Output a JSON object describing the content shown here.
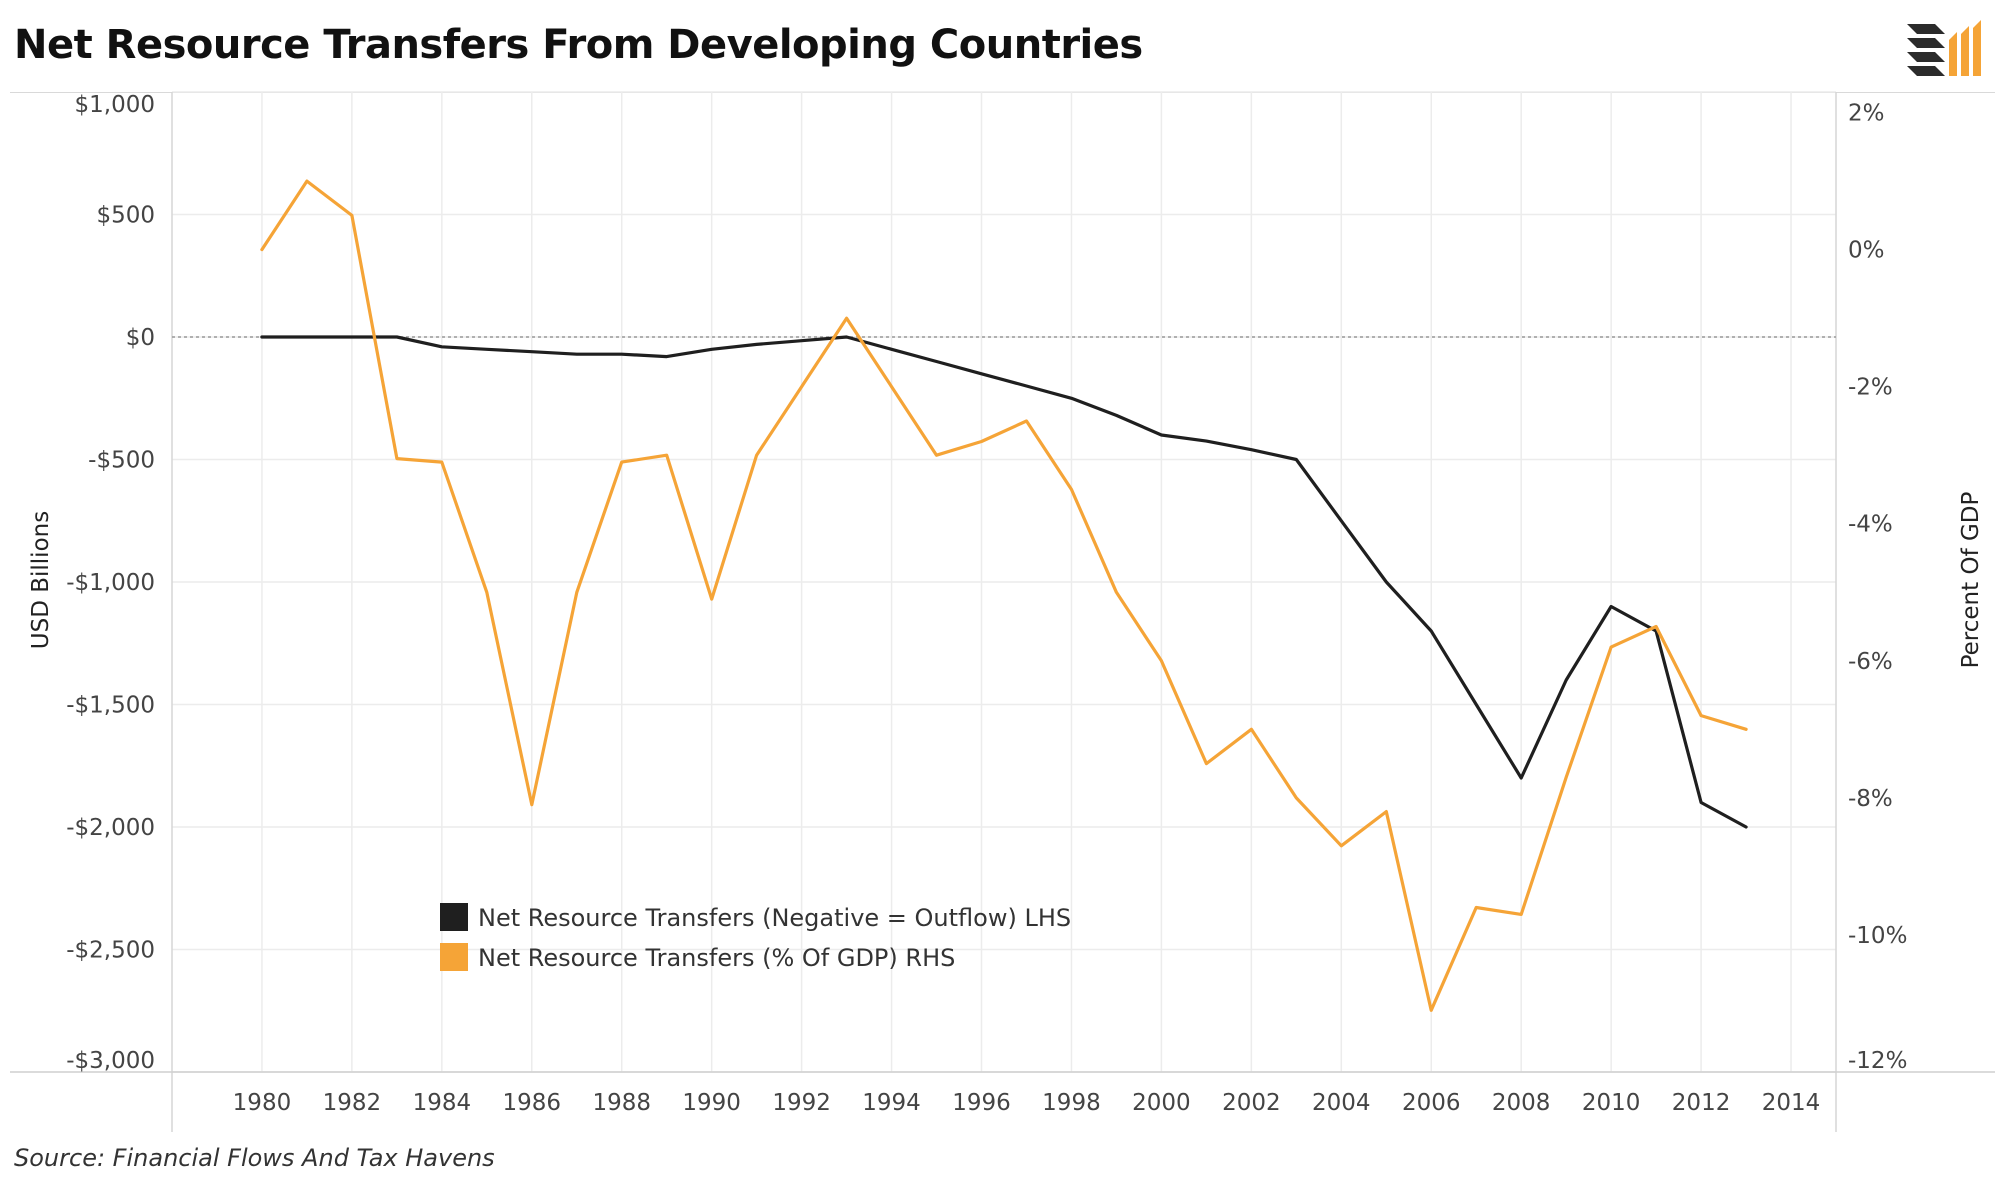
{
  "title": "Net Resource Transfers From Developing Countries",
  "source": "Source: Financial Flows And Tax Havens",
  "logo_icon": "stacked-bars-logo-icon",
  "colors": {
    "lhs": "#1f1f1f",
    "rhs": "#f5a437",
    "logo_dark": "#2b2b2b",
    "logo_accent": "#f5a437"
  },
  "chart_data": {
    "type": "line",
    "title": "Net Resource Transfers From Developing Countries",
    "ylabel": "USD Billions",
    "y2label": "Percent Of GDP",
    "xlim": [
      1978,
      2015
    ],
    "ylim": [
      -3000,
      1000
    ],
    "y2lim": [
      -12,
      2.3
    ],
    "x_ticks": [
      1980,
      1982,
      1984,
      1986,
      1988,
      1990,
      1992,
      1994,
      1996,
      1998,
      2000,
      2002,
      2004,
      2006,
      2008,
      2010,
      2012,
      2014
    ],
    "y_ticks": [
      1000,
      500,
      0,
      -500,
      -1000,
      -1500,
      -2000,
      -2500,
      -3000
    ],
    "y_tick_labels": [
      "$1,000",
      "$500",
      "$0",
      "-$500",
      "-$1,000",
      "-$1,500",
      "-$2,000",
      "-$2,500",
      "-$3,000"
    ],
    "y2_ticks": [
      2,
      0,
      -2,
      -4,
      -6,
      -8,
      -10,
      -12
    ],
    "y2_tick_labels": [
      "2%",
      "0%",
      "-2%",
      "-4%",
      "-6%",
      "-8%",
      "-10%",
      "-12%"
    ],
    "grid": true,
    "legend_position": "bottom-left",
    "series": [
      {
        "name": "Net Resource Transfers (Negative = Outflow) LHS",
        "axis": "left",
        "color": "#1f1f1f",
        "x": [
          1980,
          1981,
          1982,
          1983,
          1984,
          1985,
          1986,
          1987,
          1988,
          1989,
          1990,
          1991,
          1992,
          1993,
          1994,
          1995,
          1996,
          1997,
          1998,
          1999,
          2000,
          2001,
          2002,
          2003,
          2004,
          2005,
          2006,
          2007,
          2008,
          2009,
          2010,
          2011,
          2012,
          2013
        ],
        "values": [
          0,
          0,
          0,
          0,
          -40,
          -50,
          -60,
          -70,
          -70,
          -80,
          -50,
          -30,
          -15,
          0,
          -50,
          -100,
          -150,
          -200,
          -250,
          -320,
          -400,
          -425,
          -460,
          -500,
          -750,
          -1000,
          -1200,
          -1500,
          -1800,
          -1400,
          -1100,
          -1200,
          -1900,
          -2000
        ]
      },
      {
        "name": "Net Resource Transfers (% Of GDP) RHS",
        "axis": "right",
        "color": "#f5a437",
        "x": [
          1980,
          1981,
          1982,
          1983,
          1984,
          1985,
          1986,
          1987,
          1988,
          1989,
          1990,
          1991,
          1992,
          1993,
          1994,
          1995,
          1996,
          1997,
          1998,
          1999,
          2000,
          2001,
          2002,
          2003,
          2004,
          2005,
          2006,
          2007,
          2008,
          2009,
          2010,
          2011,
          2012,
          2013
        ],
        "values": [
          0,
          1.0,
          0.5,
          -3.05,
          -3.1,
          -5.0,
          -8.1,
          -5.0,
          -3.1,
          -3.0,
          -5.1,
          -3.0,
          -2.0,
          -1.0,
          -2.0,
          -3.0,
          -2.8,
          -2.5,
          -3.5,
          -5.0,
          -6.0,
          -7.5,
          -7.0,
          -8.0,
          -8.7,
          -8.2,
          -11.1,
          -9.6,
          -9.7,
          -7.7,
          -5.8,
          -5.5,
          -6.8,
          -7.0
        ]
      }
    ]
  }
}
